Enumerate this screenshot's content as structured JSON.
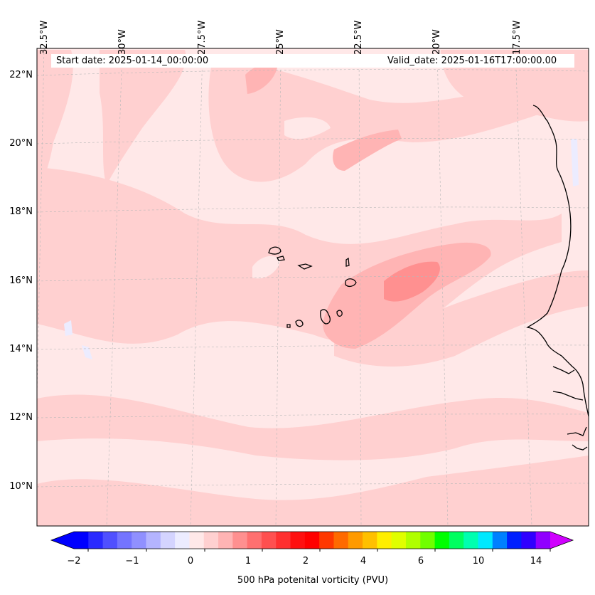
{
  "map": {
    "start_label": "Start date: 2025-01-14_00:00:00",
    "valid_label": "Valid_date: 2025-01-16T17:00:00.00",
    "lon_labels": [
      "32.5°W",
      "30°W",
      "27.5°W",
      "25°W",
      "22.5°W",
      "20°W",
      "17.5°W"
    ],
    "lat_labels": [
      "22°N",
      "20°N",
      "18°N",
      "16°N",
      "14°N",
      "12°N",
      "10°N"
    ],
    "background_color": "#ffe8e8"
  },
  "colorbar": {
    "title": "500 hPa potenital vorticity (PVU)",
    "tick_labels": [
      "−2",
      "−1",
      "0",
      "1",
      "2",
      "4",
      "6",
      "10",
      "14"
    ],
    "colors": [
      "#0000ff",
      "#2a2aff",
      "#5050ff",
      "#7474ff",
      "#9090ff",
      "#b4b4ff",
      "#d4d4ff",
      "#ececff",
      "#ffe8e8",
      "#ffd0d0",
      "#ffb4b4",
      "#ff9090",
      "#ff7070",
      "#ff5050",
      "#ff3030",
      "#ff1010",
      "#ff0000",
      "#ff3800",
      "#ff6a00",
      "#ff9a00",
      "#ffc000",
      "#ffee00",
      "#e0ff00",
      "#b0ff00",
      "#70ff00",
      "#00ff00",
      "#00ff60",
      "#00ffb0",
      "#00e8ff",
      "#0080ff",
      "#0020ff",
      "#3000ff",
      "#9000ff"
    ],
    "extend_min_color": "#0000ff",
    "extend_max_color": "#d000ff"
  }
}
